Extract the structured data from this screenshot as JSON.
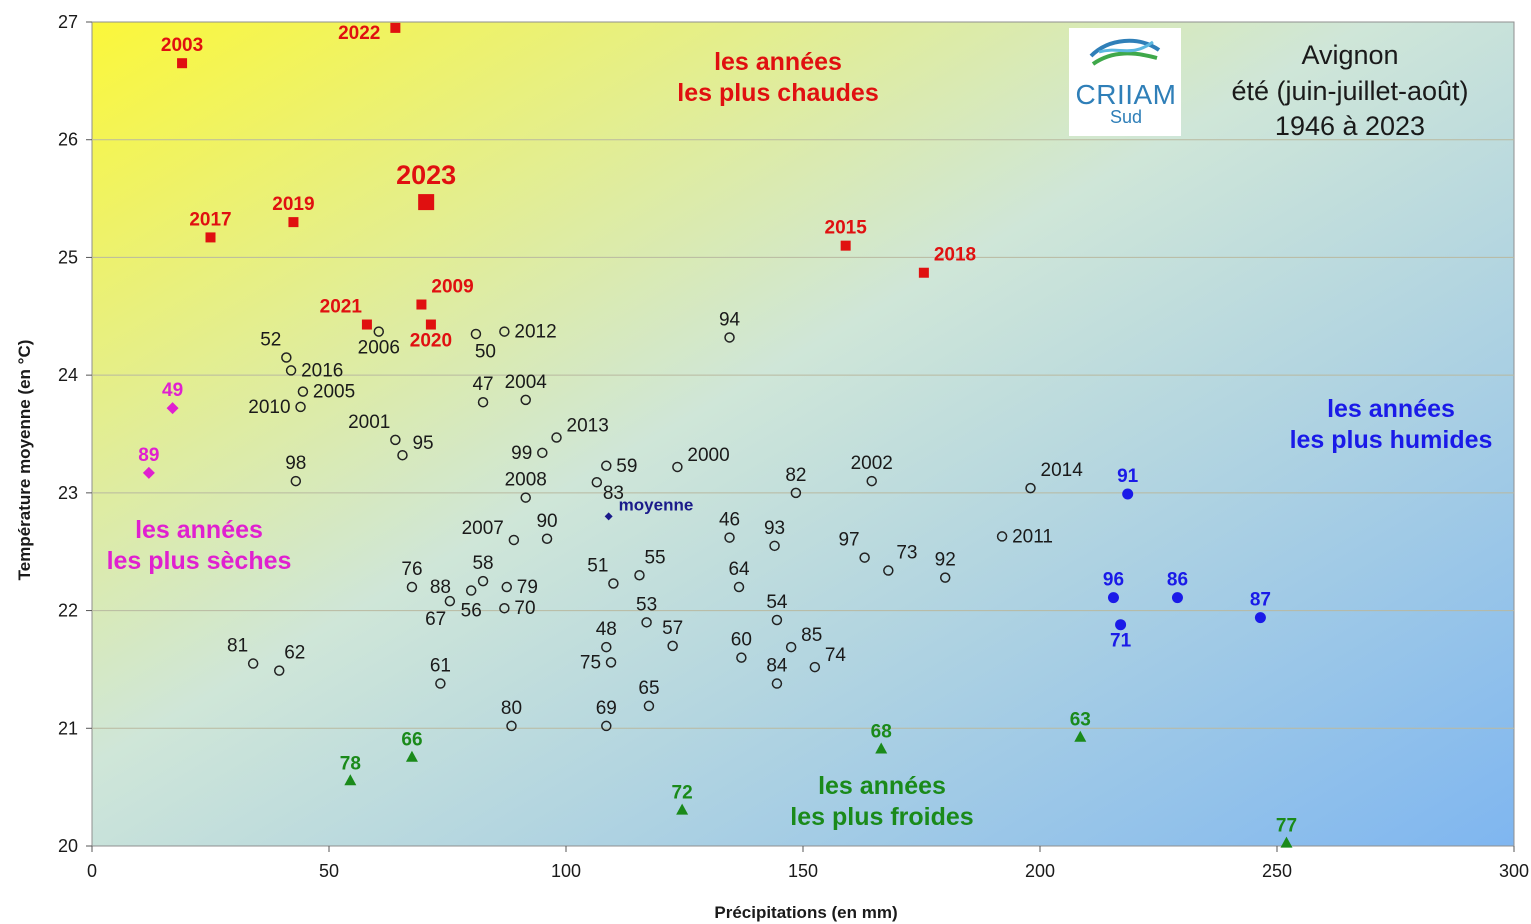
{
  "title_lines": [
    "Avignon",
    "été (juin-juillet-août)",
    "1946 à 2023"
  ],
  "logo": {
    "name": "CRIIAM",
    "sub": "Sud"
  },
  "colors": {
    "hot": "#e01010",
    "dry": "#e020d0",
    "wet": "#1a1ae8",
    "cold": "#1a8a1a",
    "normal": "#222222",
    "mean": "#1a1a8a"
  },
  "chart_data": {
    "type": "scatter",
    "xlabel": "Précipitations (en mm)",
    "ylabel": "Température moyenne (en °C)",
    "xlim": [
      0,
      300
    ],
    "ylim": [
      20,
      27
    ],
    "xticks": [
      0,
      50,
      100,
      150,
      200,
      250,
      300
    ],
    "yticks": [
      20,
      21,
      22,
      23,
      24,
      25,
      26,
      27
    ],
    "grid": true,
    "background": "gradient: yellow top-left to blue bottom-right",
    "zones": [
      {
        "lines": [
          "les années",
          "les plus chaudes"
        ],
        "color": "#e01010"
      },
      {
        "lines": [
          "les années",
          "les plus sèches"
        ],
        "color": "#e020d0"
      },
      {
        "lines": [
          "les années",
          "les plus humides"
        ],
        "color": "#1a1ae8"
      },
      {
        "lines": [
          "les années",
          "les plus froides"
        ],
        "color": "#1a8a1a"
      }
    ],
    "points": [
      {
        "label": "2003",
        "x": 19,
        "y": 26.65,
        "group": "hot",
        "marker": "square",
        "lx": "0",
        "ly": "-1"
      },
      {
        "label": "2022",
        "x": 64,
        "y": 26.95,
        "group": "hot",
        "marker": "square",
        "lx": "-1.5",
        "ly": "0.5"
      },
      {
        "label": "2023",
        "x": 70.5,
        "y": 25.47,
        "group": "hot",
        "marker": "square-big",
        "lx": "0",
        "ly": "-1"
      },
      {
        "label": "2017",
        "x": 25,
        "y": 25.17,
        "group": "hot",
        "marker": "square",
        "lx": "0",
        "ly": "-1"
      },
      {
        "label": "2019",
        "x": 42.5,
        "y": 25.3,
        "group": "hot",
        "marker": "square",
        "lx": "0",
        "ly": "-1"
      },
      {
        "label": "2015",
        "x": 159,
        "y": 25.1,
        "group": "hot",
        "marker": "square",
        "lx": "0",
        "ly": "-1"
      },
      {
        "label": "2018",
        "x": 175.5,
        "y": 24.87,
        "group": "hot",
        "marker": "square",
        "lx": "1",
        "ly": "-1"
      },
      {
        "label": "2009",
        "x": 69.5,
        "y": 24.6,
        "group": "hot",
        "marker": "square",
        "lx": "1",
        "ly": "-1"
      },
      {
        "label": "2020",
        "x": 71.5,
        "y": 24.43,
        "group": "hot",
        "marker": "square",
        "lx": "0",
        "ly": "1"
      },
      {
        "label": "2021",
        "x": 58,
        "y": 24.43,
        "group": "hot",
        "marker": "square",
        "lx": "-0.5",
        "ly": "-1"
      },
      {
        "label": "49",
        "x": 17,
        "y": 23.72,
        "group": "dry",
        "marker": "diamond",
        "lx": "0",
        "ly": "-1"
      },
      {
        "label": "89",
        "x": 12,
        "y": 23.17,
        "group": "dry",
        "marker": "diamond",
        "lx": "0",
        "ly": "-1"
      },
      {
        "label": "2006",
        "x": 60.5,
        "y": 24.37,
        "group": "normal",
        "marker": "circle",
        "lx": "0",
        "ly": "1"
      },
      {
        "label": "",
        "x": 81,
        "y": 24.35,
        "group": "normal",
        "marker": "circle",
        "lx": "0",
        "ly": "0"
      },
      {
        "label": "2012",
        "x": 87,
        "y": 24.37,
        "group": "normal",
        "marker": "circle",
        "lx": "1",
        "ly": "0"
      },
      {
        "label": "50",
        "x": 83,
        "y": 24.2,
        "group": "normal",
        "marker": "none",
        "lx": "0",
        "ly": "0"
      },
      {
        "label": "94",
        "x": 134.5,
        "y": 24.32,
        "group": "normal",
        "marker": "circle",
        "lx": "0",
        "ly": "-1"
      },
      {
        "label": "52",
        "x": 41,
        "y": 24.15,
        "group": "normal",
        "marker": "circle",
        "lx": "-0.5",
        "ly": "-1"
      },
      {
        "label": "2016",
        "x": 42,
        "y": 24.04,
        "group": "normal",
        "marker": "circle",
        "lx": "1",
        "ly": "0"
      },
      {
        "label": "2005",
        "x": 44.5,
        "y": 23.86,
        "group": "normal",
        "marker": "circle",
        "lx": "1",
        "ly": "0"
      },
      {
        "label": "2010",
        "x": 44,
        "y": 23.73,
        "group": "normal",
        "marker": "circle",
        "lx": "-1",
        "ly": "0"
      },
      {
        "label": "47",
        "x": 82.5,
        "y": 23.77,
        "group": "normal",
        "marker": "circle",
        "lx": "0",
        "ly": "-1"
      },
      {
        "label": "2004",
        "x": 91.5,
        "y": 23.79,
        "group": "normal",
        "marker": "circle",
        "lx": "0",
        "ly": "-1"
      },
      {
        "label": "2013",
        "x": 98,
        "y": 23.47,
        "group": "normal",
        "marker": "circle",
        "lx": "1",
        "ly": "-0.5"
      },
      {
        "label": "2001",
        "x": 64,
        "y": 23.45,
        "group": "normal",
        "marker": "circle",
        "lx": "-0.5",
        "ly": "-1"
      },
      {
        "label": "95",
        "x": 65.5,
        "y": 23.32,
        "group": "normal",
        "marker": "circle",
        "lx": "1",
        "ly": "-0.5"
      },
      {
        "label": "99",
        "x": 95,
        "y": 23.34,
        "group": "normal",
        "marker": "circle",
        "lx": "-1",
        "ly": "0"
      },
      {
        "label": "98",
        "x": 43,
        "y": 23.1,
        "group": "normal",
        "marker": "circle",
        "lx": "0",
        "ly": "-1"
      },
      {
        "label": "59",
        "x": 108.5,
        "y": 23.23,
        "group": "normal",
        "marker": "circle",
        "lx": "1",
        "ly": "0"
      },
      {
        "label": "2000",
        "x": 123.5,
        "y": 23.22,
        "group": "normal",
        "marker": "circle",
        "lx": "1",
        "ly": "-0.5"
      },
      {
        "label": "2008",
        "x": 91.5,
        "y": 22.96,
        "group": "normal",
        "marker": "circle",
        "lx": "0",
        "ly": "-1"
      },
      {
        "label": "",
        "x": 106.5,
        "y": 23.09,
        "group": "normal",
        "marker": "circle",
        "lx": "0",
        "ly": "0"
      },
      {
        "label": "83",
        "x": 110,
        "y": 23.0,
        "group": "normal",
        "marker": "none",
        "lx": "0",
        "ly": "0"
      },
      {
        "label": "82",
        "x": 148.5,
        "y": 23.0,
        "group": "normal",
        "marker": "circle",
        "lx": "0",
        "ly": "-1"
      },
      {
        "label": "2002",
        "x": 164.5,
        "y": 23.1,
        "group": "normal",
        "marker": "circle",
        "lx": "0",
        "ly": "-1"
      },
      {
        "label": "2014",
        "x": 198,
        "y": 23.04,
        "group": "normal",
        "marker": "circle",
        "lx": "1",
        "ly": "-1"
      },
      {
        "label": "moyenne",
        "x": 109,
        "y": 22.8,
        "group": "mean",
        "marker": "diamond-small",
        "lx": "1",
        "ly": "-0.5"
      },
      {
        "label": "2007",
        "x": 89,
        "y": 22.6,
        "group": "normal",
        "marker": "circle",
        "lx": "-1",
        "ly": "-0.5"
      },
      {
        "label": "90",
        "x": 96,
        "y": 22.61,
        "group": "normal",
        "marker": "circle",
        "lx": "0",
        "ly": "-1"
      },
      {
        "label": "46",
        "x": 134.5,
        "y": 22.62,
        "group": "normal",
        "marker": "circle",
        "lx": "0",
        "ly": "-1"
      },
      {
        "label": "93",
        "x": 144,
        "y": 22.55,
        "group": "normal",
        "marker": "circle",
        "lx": "0",
        "ly": "-1"
      },
      {
        "label": "2011",
        "x": 192,
        "y": 22.63,
        "group": "normal",
        "marker": "circle",
        "lx": "1",
        "ly": "0"
      },
      {
        "label": "97",
        "x": 163,
        "y": 22.45,
        "group": "normal",
        "marker": "circle",
        "lx": "-0.5",
        "ly": "-1"
      },
      {
        "label": "73",
        "x": 168,
        "y": 22.34,
        "group": "normal",
        "marker": "circle",
        "lx": "0.8",
        "ly": "-1"
      },
      {
        "label": "92",
        "x": 180,
        "y": 22.28,
        "group": "normal",
        "marker": "circle",
        "lx": "0",
        "ly": "-1"
      },
      {
        "label": "76",
        "x": 67.5,
        "y": 22.2,
        "group": "normal",
        "marker": "circle",
        "lx": "0",
        "ly": "-1"
      },
      {
        "label": "88",
        "x": 73.5,
        "y": 22.2,
        "group": "normal",
        "marker": "none",
        "lx": "0",
        "ly": "0"
      },
      {
        "label": "58",
        "x": 82.5,
        "y": 22.25,
        "group": "normal",
        "marker": "circle",
        "lx": "0",
        "ly": "-1"
      },
      {
        "label": "79",
        "x": 87.5,
        "y": 22.2,
        "group": "normal",
        "marker": "circle",
        "lx": "1",
        "ly": "0"
      },
      {
        "label": "51",
        "x": 110,
        "y": 22.23,
        "group": "normal",
        "marker": "circle",
        "lx": "-0.5",
        "ly": "-1"
      },
      {
        "label": "55",
        "x": 115.5,
        "y": 22.3,
        "group": "normal",
        "marker": "circle",
        "lx": "0.5",
        "ly": "-1"
      },
      {
        "label": "64",
        "x": 136.5,
        "y": 22.2,
        "group": "normal",
        "marker": "circle",
        "lx": "0",
        "ly": "-1"
      },
      {
        "label": "",
        "x": 80,
        "y": 22.17,
        "group": "normal",
        "marker": "circle",
        "lx": "0",
        "ly": "0"
      },
      {
        "label": "",
        "x": 75.5,
        "y": 22.08,
        "group": "normal",
        "marker": "circle",
        "lx": "0",
        "ly": "0"
      },
      {
        "label": "56",
        "x": 80,
        "y": 22.0,
        "group": "normal",
        "marker": "none",
        "lx": "0",
        "ly": "0"
      },
      {
        "label": "67",
        "x": 72.5,
        "y": 21.93,
        "group": "normal",
        "marker": "none",
        "lx": "0",
        "ly": "0"
      },
      {
        "label": "70",
        "x": 87,
        "y": 22.02,
        "group": "normal",
        "marker": "circle",
        "lx": "1",
        "ly": "0"
      },
      {
        "label": "53",
        "x": 117,
        "y": 21.9,
        "group": "normal",
        "marker": "circle",
        "lx": "0",
        "ly": "-1"
      },
      {
        "label": "54",
        "x": 144.5,
        "y": 21.92,
        "group": "normal",
        "marker": "circle",
        "lx": "0",
        "ly": "-1"
      },
      {
        "label": "81",
        "x": 34,
        "y": 21.55,
        "group": "normal",
        "marker": "circle",
        "lx": "-0.5",
        "ly": "-1"
      },
      {
        "label": "62",
        "x": 39.5,
        "y": 21.49,
        "group": "normal",
        "marker": "circle",
        "lx": "0.5",
        "ly": "-1"
      },
      {
        "label": "48",
        "x": 108.5,
        "y": 21.69,
        "group": "normal",
        "marker": "circle",
        "lx": "0",
        "ly": "-1"
      },
      {
        "label": "57",
        "x": 122.5,
        "y": 21.7,
        "group": "normal",
        "marker": "circle",
        "lx": "0",
        "ly": "-1"
      },
      {
        "label": "60",
        "x": 137,
        "y": 21.6,
        "group": "normal",
        "marker": "circle",
        "lx": "0",
        "ly": "-1"
      },
      {
        "label": "85",
        "x": 147.5,
        "y": 21.69,
        "group": "normal",
        "marker": "circle",
        "lx": "1",
        "ly": "-0.5"
      },
      {
        "label": "74",
        "x": 152.5,
        "y": 21.52,
        "group": "normal",
        "marker": "circle",
        "lx": "1",
        "ly": "-0.5"
      },
      {
        "label": "75",
        "x": 109.5,
        "y": 21.56,
        "group": "normal",
        "marker": "circle",
        "lx": "-1",
        "ly": "0"
      },
      {
        "label": "84",
        "x": 144.5,
        "y": 21.38,
        "group": "normal",
        "marker": "circle",
        "lx": "0",
        "ly": "-1"
      },
      {
        "label": "61",
        "x": 73.5,
        "y": 21.38,
        "group": "normal",
        "marker": "circle",
        "lx": "0",
        "ly": "-1"
      },
      {
        "label": "65",
        "x": 117.5,
        "y": 21.19,
        "group": "normal",
        "marker": "circle",
        "lx": "0",
        "ly": "-1"
      },
      {
        "label": "80",
        "x": 88.5,
        "y": 21.02,
        "group": "normal",
        "marker": "circle",
        "lx": "0",
        "ly": "-1"
      },
      {
        "label": "69",
        "x": 108.5,
        "y": 21.02,
        "group": "normal",
        "marker": "circle",
        "lx": "0",
        "ly": "-1"
      },
      {
        "label": "91",
        "x": 218.5,
        "y": 22.99,
        "group": "wet",
        "marker": "circle-filled",
        "lx": "0",
        "ly": "-1"
      },
      {
        "label": "96",
        "x": 215.5,
        "y": 22.11,
        "group": "wet",
        "marker": "circle-filled",
        "lx": "0",
        "ly": "-1"
      },
      {
        "label": "86",
        "x": 229,
        "y": 22.11,
        "group": "wet",
        "marker": "circle-filled",
        "lx": "0",
        "ly": "-1"
      },
      {
        "label": "71",
        "x": 217,
        "y": 21.88,
        "group": "wet",
        "marker": "circle-filled",
        "lx": "0",
        "ly": "1"
      },
      {
        "label": "87",
        "x": 246.5,
        "y": 21.94,
        "group": "wet",
        "marker": "circle-filled",
        "lx": "0",
        "ly": "-1"
      },
      {
        "label": "78",
        "x": 54.5,
        "y": 20.55,
        "group": "cold",
        "marker": "triangle",
        "lx": "0",
        "ly": "-1"
      },
      {
        "label": "66",
        "x": 67.5,
        "y": 20.75,
        "group": "cold",
        "marker": "triangle",
        "lx": "0",
        "ly": "-1"
      },
      {
        "label": "72",
        "x": 124.5,
        "y": 20.3,
        "group": "cold",
        "marker": "triangle",
        "lx": "0",
        "ly": "-1"
      },
      {
        "label": "68",
        "x": 166.5,
        "y": 20.82,
        "group": "cold",
        "marker": "triangle",
        "lx": "0",
        "ly": "-1"
      },
      {
        "label": "63",
        "x": 208.5,
        "y": 20.92,
        "group": "cold",
        "marker": "triangle",
        "lx": "0",
        "ly": "-1"
      },
      {
        "label": "77",
        "x": 252,
        "y": 20.02,
        "group": "cold",
        "marker": "triangle",
        "lx": "0",
        "ly": "-1"
      }
    ]
  }
}
